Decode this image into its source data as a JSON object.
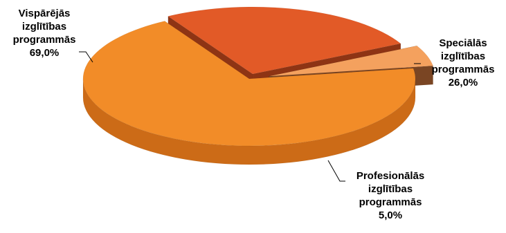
{
  "chart_data": {
    "type": "pie",
    "categories": [
      "Vispārējās izglītības programmās",
      "Speciālās izglītības programmās",
      "Profesionālās izglītības programmās"
    ],
    "values": [
      69.0,
      26.0,
      5.0
    ],
    "labels": [
      {
        "lines": [
          "Vispārējās",
          "izglītības",
          "programmās",
          "69,0%"
        ]
      },
      {
        "lines": [
          "Speciālās",
          "izglītības",
          "programmās",
          "26,0%"
        ]
      },
      {
        "lines": [
          "Profesionālās",
          "izglītības",
          "programmās",
          "5,0%"
        ]
      }
    ],
    "colors": {
      "top": [
        "#f28c28",
        "#e25a27",
        "#f4a15e"
      ],
      "side": [
        "#cc6b17",
        "#8e3414",
        "#7a4523"
      ]
    },
    "legend": "none",
    "style": "3d-exploded"
  }
}
